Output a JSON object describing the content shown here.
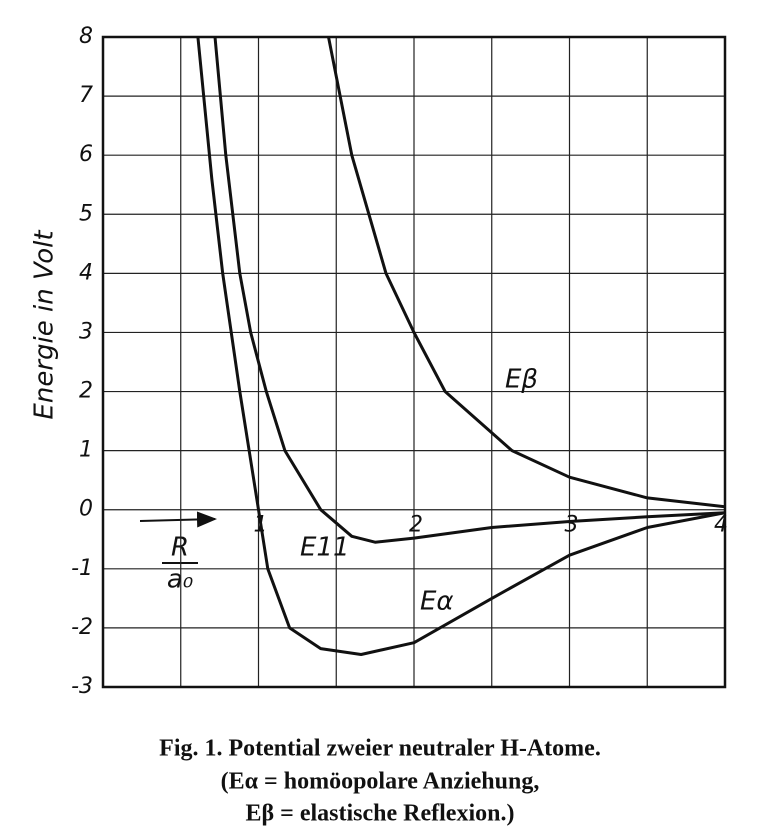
{
  "chart_data": {
    "type": "line",
    "ylabel": "Energie in Volt",
    "xlabel_numerator": "R",
    "xlabel_denominator": "a₀",
    "xlim": [
      0,
      4
    ],
    "ylim": [
      -3,
      8
    ],
    "xticks": [
      1,
      2,
      3,
      4
    ],
    "x_grid_lines": [
      0.5,
      1,
      1.5,
      2,
      2.5,
      3,
      3.5
    ],
    "yticks": [
      -3,
      -2,
      -1,
      0,
      1,
      2,
      3,
      4,
      5,
      6,
      7,
      8
    ],
    "grid": true,
    "series": [
      {
        "name": "Eα",
        "color": "#111111",
        "x": [
          0.61,
          0.7,
          0.77,
          0.88,
          1.0,
          1.06,
          1.2,
          1.4,
          1.66,
          2.0,
          2.5,
          3.0,
          3.5,
          4.0
        ],
        "values": [
          8,
          5.6,
          4,
          2,
          0,
          -1,
          -2,
          -2.35,
          -2.45,
          -2.25,
          -1.5,
          -0.77,
          -0.3,
          -0.05
        ]
      },
      {
        "name": "E11",
        "color": "#111111",
        "x": [
          0.72,
          0.79,
          0.88,
          0.95,
          1.05,
          1.17,
          1.4,
          1.6,
          1.75,
          2.0,
          2.5,
          3.0,
          3.5,
          4.0
        ],
        "values": [
          8,
          6,
          4,
          3,
          2,
          1,
          0,
          -0.45,
          -0.55,
          -0.48,
          -0.3,
          -0.2,
          -0.12,
          -0.05
        ]
      },
      {
        "name": "Eβ",
        "color": "#111111",
        "x": [
          1.45,
          1.6,
          1.82,
          2.0,
          2.2,
          2.63,
          3.0,
          3.5,
          4.0
        ],
        "values": [
          8,
          6,
          4,
          3,
          2,
          1,
          0.55,
          0.2,
          0.05
        ]
      }
    ],
    "caption": [
      "Fig. 1.  Potential zweier neutraler H-Atome.",
      "(Eα = homöopolare Anziehung,",
      "Eβ = elastische Reflexion.)"
    ]
  }
}
